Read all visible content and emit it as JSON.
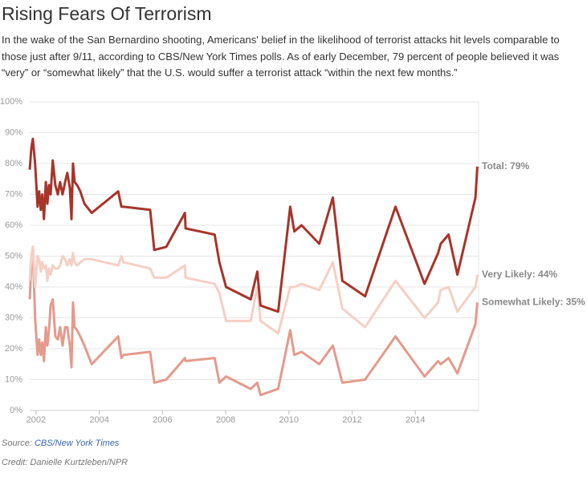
{
  "chart_data": {
    "type": "line",
    "title": "Rising Fears Of Terrorism",
    "subtitle": "In the wake of the San Bernardino shooting, Americans' belief in the likelihood of terrorist attacks hit levels comparable to those just after 9/11, according to CBS/New York Times polls. As of early December, 79 percent of people believed it was “very” or “somewhat likely” that the U.S. would suffer a terrorist attack “within the next few months.”",
    "source_prefix": "Source:",
    "source": "CBS/New York Times",
    "credit": "Credit: Danielle Kurtzleben/NPR",
    "x": [
      2001.8,
      2001.85,
      2001.9,
      2001.97,
      2002.05,
      2002.1,
      2002.15,
      2002.2,
      2002.25,
      2002.31,
      2002.36,
      2002.41,
      2002.46,
      2002.53,
      2002.61,
      2002.69,
      2002.76,
      2002.84,
      2002.92,
      2002.99,
      2003.07,
      2003.12,
      2003.17,
      2003.22,
      2003.3,
      2003.4,
      2003.53,
      2003.76,
      2004.6,
      2004.7,
      2004.77,
      2005.61,
      2005.74,
      2006.12,
      2006.71,
      2006.73,
      2007.65,
      2007.8,
      2008.01,
      2008.79,
      2009.0,
      2009.1,
      2009.66,
      2010.04,
      2010.17,
      2010.4,
      2010.96,
      2011.39,
      2011.69,
      2012.41,
      2013.37,
      2014.29,
      2014.72,
      2014.8,
      2015.05,
      2015.33,
      2015.9,
      2015.96
    ],
    "series": [
      {
        "label": "Total: 79%",
        "color": "#a8342a",
        "width": 3,
        "values": [
          78,
          85,
          88,
          80,
          66,
          71,
          65,
          70,
          62,
          74,
          67,
          73,
          70,
          81,
          73,
          70,
          74,
          70,
          74,
          77,
          72,
          62,
          80,
          74,
          73,
          71,
          67,
          64,
          71,
          66,
          66,
          65,
          52,
          53,
          64,
          59,
          57,
          48,
          40,
          36,
          45,
          34,
          32,
          66,
          58,
          60,
          54,
          69,
          42,
          37,
          66,
          41,
          51,
          54,
          57,
          44,
          69,
          79
        ]
      },
      {
        "label": "Very Likely: 44%",
        "color": "#f5cfc5",
        "width": 3,
        "values": [
          42,
          50,
          53,
          40,
          50,
          49,
          45,
          48,
          46,
          47,
          42,
          46,
          44,
          47,
          46,
          46,
          47,
          50,
          49,
          47,
          49,
          47,
          51,
          48,
          47,
          48,
          49,
          49,
          47,
          50,
          48,
          46,
          43,
          43,
          47,
          43,
          41,
          38,
          29,
          29,
          40,
          29,
          25,
          40,
          40,
          41,
          39,
          48,
          33,
          27,
          42,
          30,
          35,
          39,
          40,
          32,
          40,
          44
        ]
      },
      {
        "label": "Somewhat Likely: 35%",
        "color": "#e59a8c",
        "width": 3,
        "values": [
          36,
          47,
          53,
          30,
          18,
          23,
          18,
          22,
          16,
          27,
          21,
          26,
          34,
          36,
          24,
          23,
          27,
          21,
          27,
          27,
          21,
          14,
          35,
          27,
          26,
          24,
          21,
          15,
          24,
          17,
          18,
          19,
          9,
          10,
          17,
          16,
          17,
          9,
          11,
          7,
          9,
          5,
          7,
          26,
          18,
          19,
          15,
          21,
          9,
          10,
          24,
          11,
          16,
          15,
          17,
          12,
          28,
          35
        ]
      }
    ],
    "xlim": [
      2001.8,
      2016.0
    ],
    "xticks": [
      2002,
      2004,
      2006,
      2008,
      2010,
      2012,
      2014
    ],
    "ylim": [
      0,
      100
    ],
    "yticks": [
      {
        "value": 0,
        "label": "0%"
      },
      {
        "value": 10,
        "label": "10%"
      },
      {
        "value": 20,
        "label": "20%"
      },
      {
        "value": 30,
        "label": "30%"
      },
      {
        "value": 40,
        "label": "40%"
      },
      {
        "value": 50,
        "label": "50%"
      },
      {
        "value": 60,
        "label": "60%"
      },
      {
        "value": 70,
        "label": "70%"
      },
      {
        "value": 80,
        "label": "80%"
      },
      {
        "value": 90,
        "label": "90%"
      },
      {
        "value": 100,
        "label": "100%"
      }
    ],
    "grid": true
  }
}
